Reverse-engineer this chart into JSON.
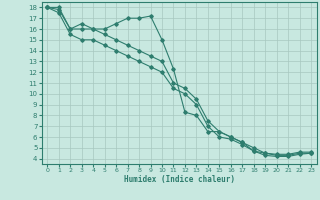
{
  "title": "",
  "xlabel": "Humidex (Indice chaleur)",
  "xlim": [
    -0.5,
    23.5
  ],
  "ylim": [
    3.5,
    18.5
  ],
  "xticks": [
    0,
    1,
    2,
    3,
    4,
    5,
    6,
    7,
    8,
    9,
    10,
    11,
    12,
    13,
    14,
    15,
    16,
    17,
    18,
    19,
    20,
    21,
    22,
    23
  ],
  "yticks": [
    4,
    5,
    6,
    7,
    8,
    9,
    10,
    11,
    12,
    13,
    14,
    15,
    16,
    17,
    18
  ],
  "line_color": "#2e7d6e",
  "bg_color": "#c8e8e0",
  "grid_color": "#a8c8c0",
  "line1": {
    "x": [
      0,
      1,
      2,
      3,
      4,
      5,
      6,
      7,
      8,
      9,
      10,
      11,
      12,
      13,
      14,
      15,
      16,
      17,
      18,
      19,
      20,
      21,
      22,
      23
    ],
    "y": [
      18,
      18,
      16,
      16.5,
      16,
      16,
      16.5,
      17,
      17,
      17.2,
      15,
      12.3,
      8.3,
      8.0,
      6.5,
      6.5,
      6.0,
      5.5,
      4.7,
      4.5,
      4.4,
      4.4,
      4.6,
      4.6
    ]
  },
  "line2": {
    "x": [
      0,
      1,
      2,
      3,
      4,
      5,
      6,
      7,
      8,
      9,
      10,
      11,
      12,
      13,
      14,
      15,
      16,
      17,
      18,
      19,
      20,
      21,
      22,
      23
    ],
    "y": [
      18,
      17.8,
      16,
      16,
      16,
      15.5,
      15,
      14.5,
      14,
      13.5,
      13,
      11,
      10.5,
      9.5,
      7.5,
      6.5,
      6.0,
      5.5,
      5.0,
      4.5,
      4.3,
      4.3,
      4.5,
      4.5
    ]
  },
  "line3": {
    "x": [
      0,
      1,
      2,
      3,
      4,
      5,
      6,
      7,
      8,
      9,
      10,
      11,
      12,
      13,
      14,
      15,
      16,
      17,
      18,
      19,
      20,
      21,
      22,
      23
    ],
    "y": [
      18,
      17.5,
      15.5,
      15,
      15,
      14.5,
      14,
      13.5,
      13.0,
      12.5,
      12.0,
      10.5,
      10.0,
      9.0,
      7.0,
      6.0,
      5.8,
      5.3,
      4.7,
      4.3,
      4.2,
      4.2,
      4.4,
      4.5
    ]
  }
}
